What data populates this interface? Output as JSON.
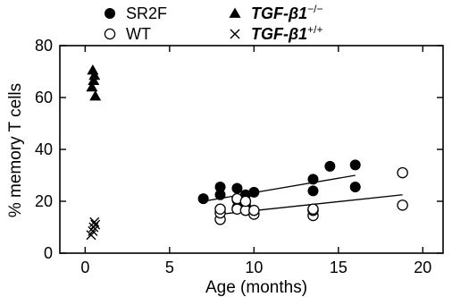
{
  "chart_data": {
    "type": "scatter",
    "xlabel": "Age (months)",
    "ylabel": "% memory T cells",
    "xlim": [
      -1.5,
      21.2
    ],
    "ylim": [
      0,
      80
    ],
    "x_ticks": [
      0,
      5,
      10,
      15,
      20
    ],
    "y_ticks": [
      0,
      20,
      40,
      60,
      80
    ],
    "legend": [
      {
        "label": "SR2F",
        "marker": "filled-circle"
      },
      {
        "label": "WT",
        "marker": "open-circle"
      },
      {
        "label_main": "TGF-β1",
        "label_sup": "−/−",
        "marker": "filled-triangle"
      },
      {
        "label_main": "TGF-β1",
        "label_sup": "+/+",
        "marker": "cross"
      }
    ],
    "series": [
      {
        "name": "SR2F",
        "marker": "filled-circle",
        "points": [
          [
            7,
            21
          ],
          [
            8,
            22.5
          ],
          [
            8,
            25.5
          ],
          [
            9,
            17.5
          ],
          [
            9,
            20.5
          ],
          [
            9,
            25
          ],
          [
            9.5,
            18.5
          ],
          [
            9.5,
            22.5
          ],
          [
            10,
            23.5
          ],
          [
            13.5,
            24
          ],
          [
            13.5,
            28.5
          ],
          [
            14.5,
            33.5
          ],
          [
            16,
            34
          ],
          [
            16,
            25.5
          ]
        ]
      },
      {
        "name": "WT",
        "marker": "open-circle",
        "points": [
          [
            8,
            13
          ],
          [
            8,
            15.5
          ],
          [
            8,
            17
          ],
          [
            9,
            17
          ],
          [
            9,
            21
          ],
          [
            9.5,
            16.5
          ],
          [
            9.5,
            20
          ],
          [
            10,
            15
          ],
          [
            10,
            16.5
          ],
          [
            13.5,
            14.5
          ],
          [
            13.5,
            16.5
          ],
          [
            13.5,
            17
          ],
          [
            18.8,
            31
          ],
          [
            18.8,
            18.5
          ]
        ]
      },
      {
        "name": "TGF-β1−/−",
        "marker": "filled-triangle",
        "points": [
          [
            0.45,
            70.5
          ],
          [
            0.55,
            68.5
          ],
          [
            0.5,
            66.5
          ],
          [
            0.4,
            64
          ],
          [
            0.6,
            60.5
          ]
        ]
      },
      {
        "name": "TGF-β1+/+",
        "marker": "cross",
        "points": [
          [
            0.55,
            12
          ],
          [
            0.6,
            11
          ],
          [
            0.5,
            10
          ],
          [
            0.45,
            8.5
          ],
          [
            0.35,
            7
          ]
        ]
      }
    ],
    "trendlines": [
      {
        "series": "SR2F",
        "from": [
          7,
          20
        ],
        "to": [
          16,
          30
        ]
      },
      {
        "series": "WT",
        "from": [
          8,
          15
        ],
        "to": [
          18.8,
          22.5
        ]
      }
    ],
    "grid": false
  }
}
